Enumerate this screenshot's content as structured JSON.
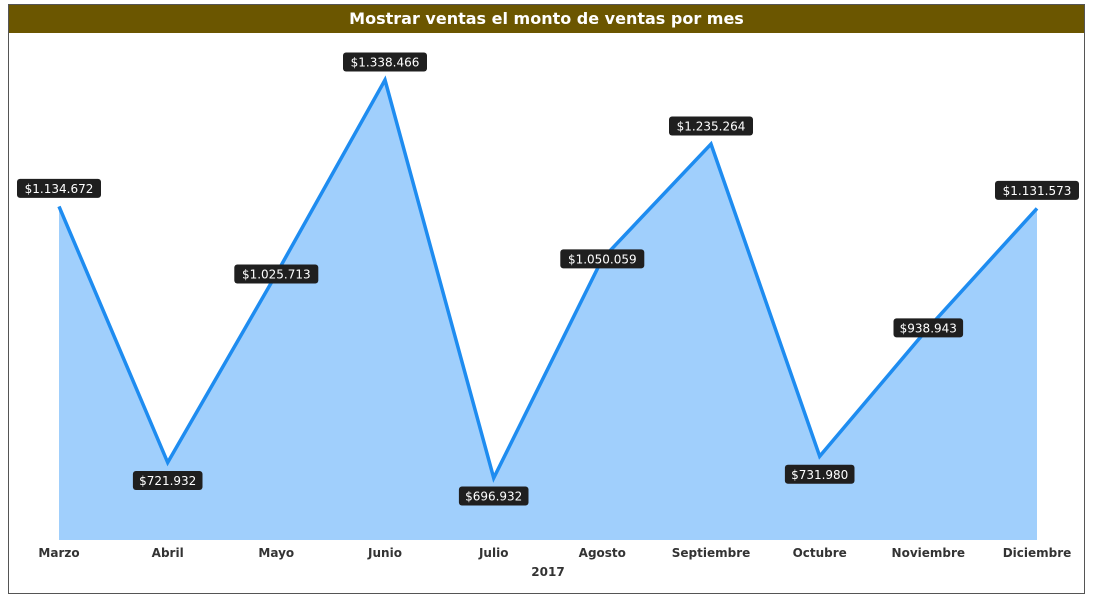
{
  "chart_data": {
    "type": "area",
    "title": "Mostrar ventas el monto de ventas por mes",
    "categories": [
      "Marzo",
      "Abril",
      "Mayo",
      "Junio",
      "Julio",
      "Agosto",
      "Septiembre",
      "Octubre",
      "Noviembre",
      "Diciembre"
    ],
    "x_group_label": "2017",
    "series": [
      {
        "values": [
          1134672,
          721932,
          1025713,
          1338466,
          696932,
          1050059,
          1235264,
          731980,
          938943,
          1131573
        ],
        "labels": [
          "$1.134.672",
          "$721.932",
          "$1.025.713",
          "$1.338.466",
          "$696.932",
          "$1.050.059",
          "$1.235.264",
          "$731.980",
          "$938.943",
          "$1.131.573"
        ]
      }
    ],
    "line_color": "#1e8cf0",
    "fill_color": "#a0cffc",
    "title_bar_color": "#6b5600",
    "grid": false,
    "legend": "none"
  }
}
